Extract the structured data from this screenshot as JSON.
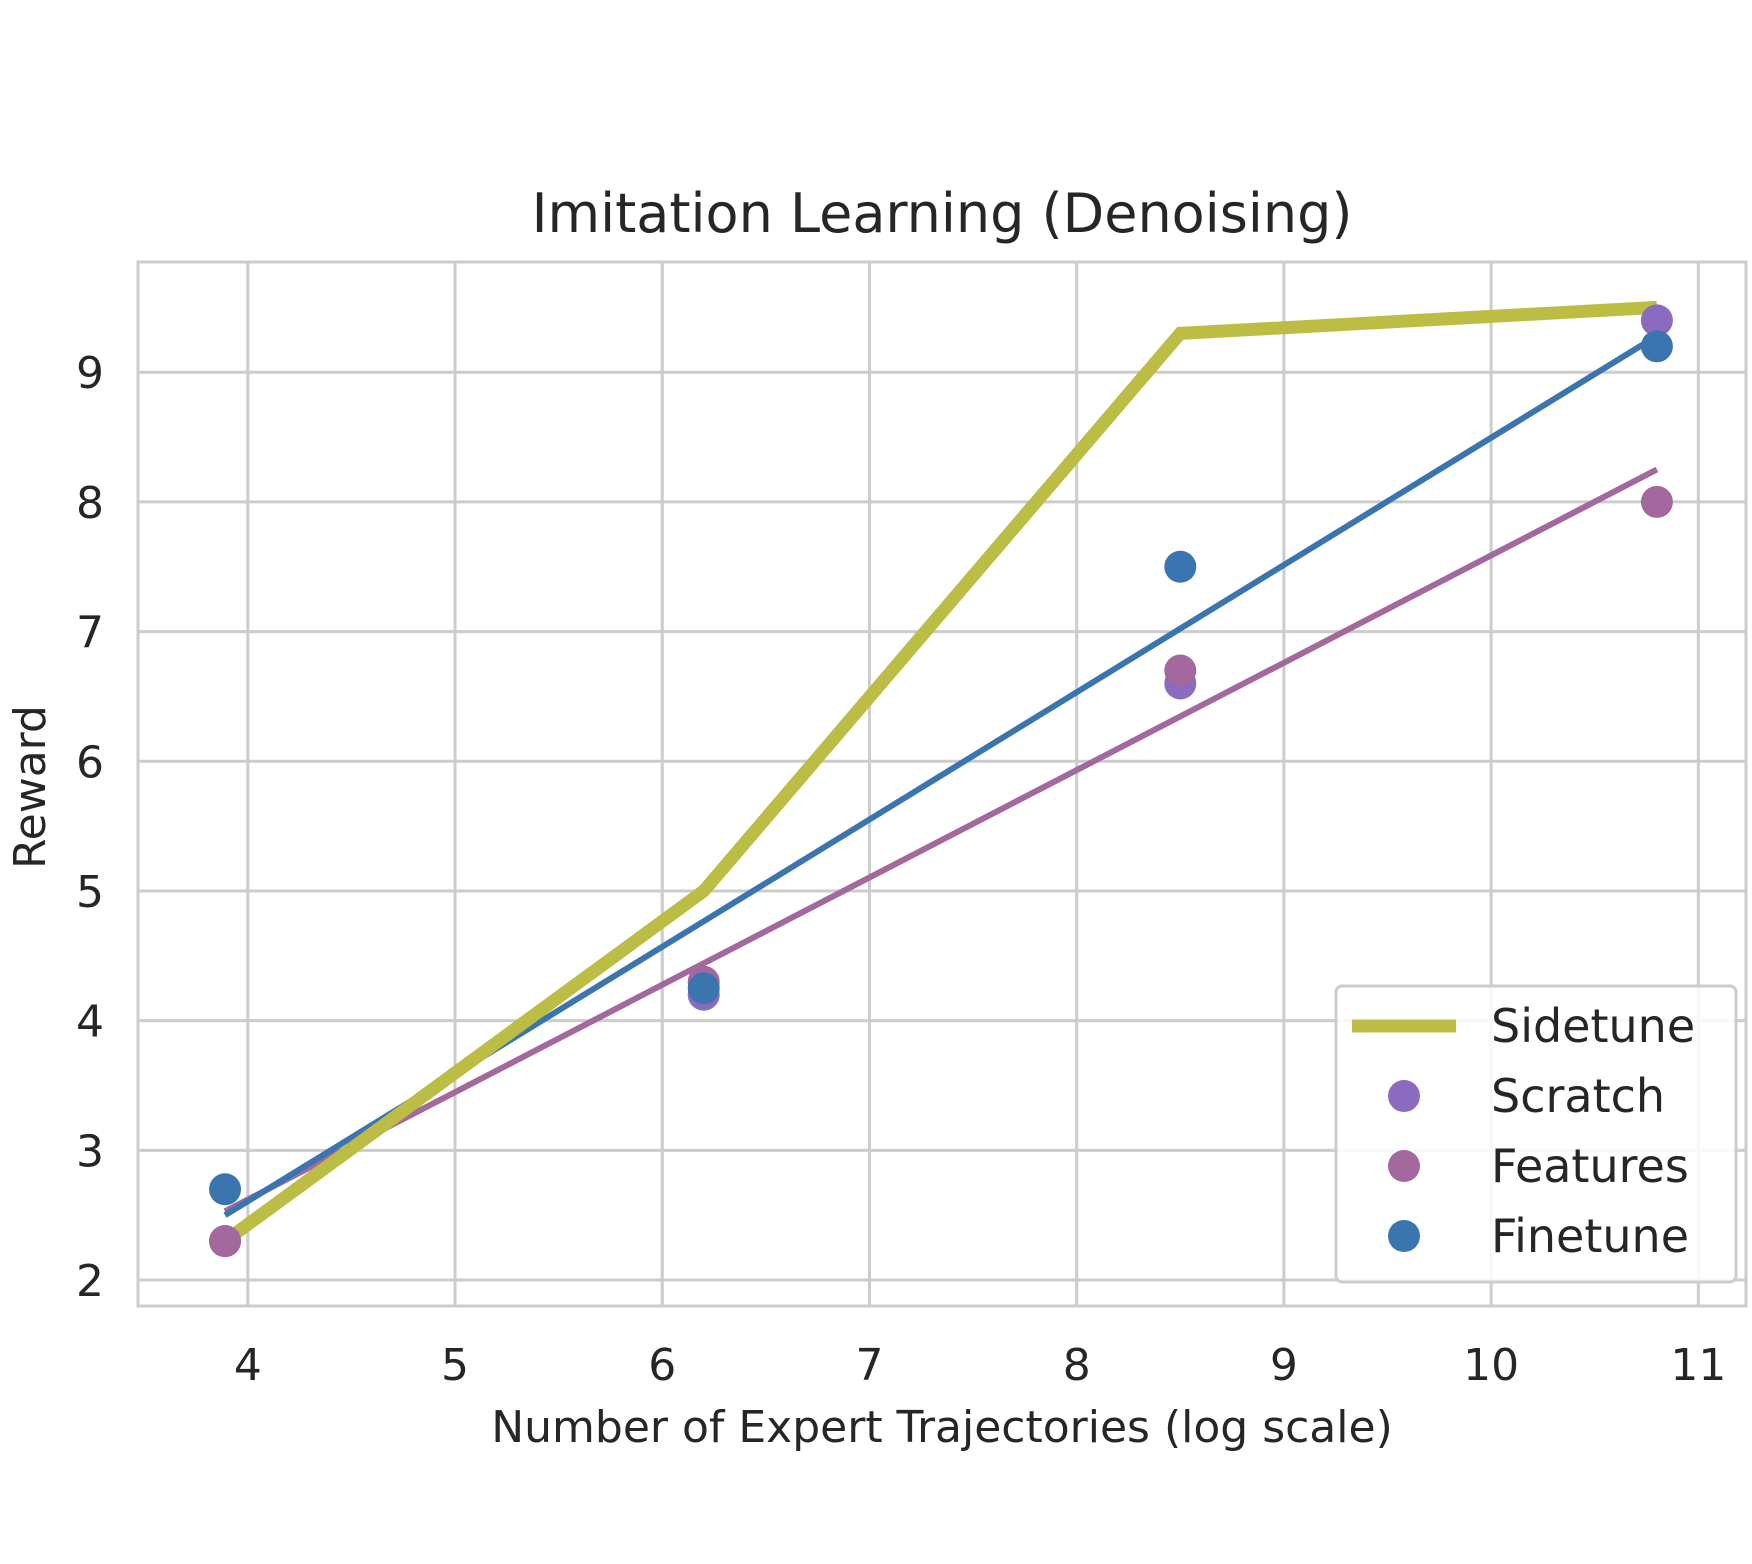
{
  "chart_data": {
    "type": "line",
    "title": "Imitation Learning (Denoising)",
    "xlabel": "Number of Expert Trajectories (log scale)",
    "ylabel": "Reward",
    "xlim": [
      3.47,
      11.23
    ],
    "ylim": [
      1.8,
      9.85
    ],
    "x_ticks": [
      4,
      5,
      6,
      7,
      8,
      9,
      10,
      11
    ],
    "y_ticks": [
      2,
      3,
      4,
      5,
      6,
      7,
      8,
      9
    ],
    "grid": true,
    "legend_position": "lower-right",
    "series": [
      {
        "name": "Sidetune",
        "kind": "line",
        "color": "#bcbd44",
        "x": [
          3.89,
          6.2,
          8.5,
          10.8
        ],
        "y": [
          2.3,
          5.0,
          9.3,
          9.5
        ]
      },
      {
        "name": "Scratch",
        "kind": "scatter",
        "color": "#8a6bbf",
        "x": [
          3.89,
          6.2,
          8.5,
          10.8
        ],
        "y": [
          2.3,
          4.2,
          6.6,
          9.4
        ]
      },
      {
        "name": "Features",
        "kind": "scatter",
        "color": "#a3689e",
        "x": [
          3.89,
          6.2,
          8.5,
          10.8
        ],
        "y": [
          2.3,
          4.3,
          6.7,
          8.0
        ],
        "fit": [
          [
            3.89,
            2.53
          ],
          [
            10.8,
            8.25
          ]
        ]
      },
      {
        "name": "Finetune",
        "kind": "scatter",
        "color": "#3a75b0",
        "x": [
          3.89,
          6.2,
          8.5,
          10.8
        ],
        "y": [
          2.7,
          4.25,
          7.5,
          9.2
        ],
        "fit": [
          [
            3.89,
            2.5
          ],
          [
            10.8,
            9.28
          ]
        ]
      }
    ]
  }
}
